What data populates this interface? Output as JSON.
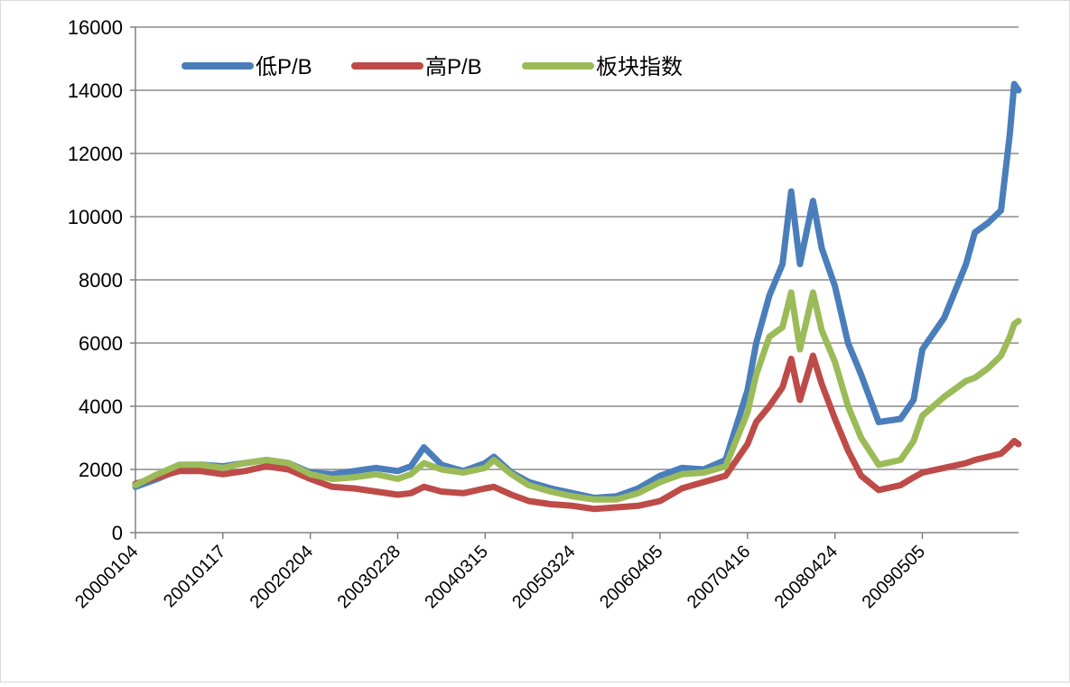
{
  "chart_data": {
    "type": "line",
    "title": "",
    "xlabel": "",
    "ylabel": "",
    "ylim": [
      0,
      16000
    ],
    "yticks": [
      0,
      2000,
      4000,
      6000,
      8000,
      10000,
      12000,
      14000,
      16000
    ],
    "grid": true,
    "legend_position": "top-left",
    "x_tick_labels": [
      "20000104",
      "20010117",
      "20020204",
      "20030228",
      "20040315",
      "20050324",
      "20060405",
      "20070416",
      "20080424",
      "20090505"
    ],
    "x": [
      2000.0,
      2000.25,
      2000.5,
      2000.75,
      2001.0,
      2001.25,
      2001.5,
      2001.75,
      2002.0,
      2002.25,
      2002.5,
      2002.75,
      2003.0,
      2003.15,
      2003.3,
      2003.5,
      2003.75,
      2004.0,
      2004.1,
      2004.3,
      2004.5,
      2004.75,
      2005.0,
      2005.25,
      2005.5,
      2005.75,
      2006.0,
      2006.25,
      2006.5,
      2006.75,
      2007.0,
      2007.1,
      2007.25,
      2007.4,
      2007.5,
      2007.6,
      2007.75,
      2007.85,
      2008.0,
      2008.15,
      2008.3,
      2008.5,
      2008.75,
      2008.9,
      2009.0,
      2009.25,
      2009.5,
      2009.6,
      2009.75,
      2009.9,
      2010.0,
      2010.05,
      2010.1
    ],
    "series": [
      {
        "name": "低P/B",
        "color": "#4a7ebb",
        "values": [
          1450,
          1700,
          2000,
          2150,
          2100,
          2200,
          2300,
          2200,
          1900,
          1850,
          1950,
          2050,
          1950,
          2100,
          2700,
          2150,
          1950,
          2200,
          2400,
          1900,
          1600,
          1400,
          1250,
          1100,
          1150,
          1400,
          1800,
          2050,
          2000,
          2300,
          4500,
          6000,
          7500,
          8500,
          10800,
          8500,
          10500,
          9000,
          7800,
          6000,
          5000,
          3500,
          3600,
          4200,
          5800,
          6800,
          8500,
          9500,
          9800,
          10200,
          12600,
          14200,
          14000
        ]
      },
      {
        "name": "高P/B",
        "color": "#be4b48",
        "values": [
          1550,
          1750,
          1950,
          1950,
          1850,
          1950,
          2100,
          2000,
          1700,
          1450,
          1400,
          1300,
          1200,
          1250,
          1450,
          1300,
          1250,
          1400,
          1450,
          1200,
          1000,
          900,
          850,
          750,
          800,
          850,
          1000,
          1400,
          1600,
          1800,
          2800,
          3500,
          4000,
          4600,
          5500,
          4200,
          5600,
          4700,
          3600,
          2600,
          1800,
          1350,
          1500,
          1750,
          1900,
          2050,
          2200,
          2300,
          2400,
          2500,
          2750,
          2900,
          2800
        ]
      },
      {
        "name": "板块指数",
        "color": "#9bbb59",
        "values": [
          1500,
          1850,
          2150,
          2150,
          2050,
          2200,
          2300,
          2200,
          1850,
          1700,
          1750,
          1850,
          1700,
          1850,
          2200,
          2000,
          1900,
          2050,
          2300,
          1850,
          1500,
          1300,
          1150,
          1050,
          1050,
          1250,
          1600,
          1850,
          1900,
          2100,
          3800,
          5000,
          6200,
          6500,
          7600,
          5800,
          7600,
          6400,
          5400,
          4000,
          3000,
          2150,
          2300,
          2900,
          3700,
          4300,
          4800,
          4900,
          5200,
          5600,
          6200,
          6600,
          6700
        ]
      }
    ]
  }
}
